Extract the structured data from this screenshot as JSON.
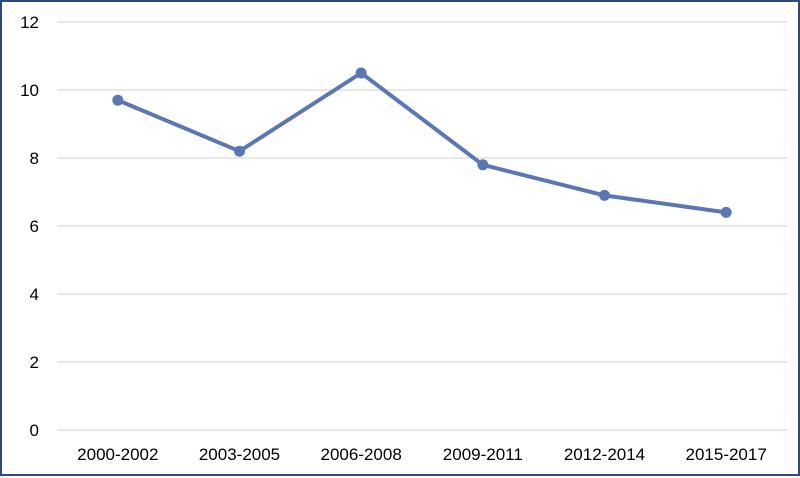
{
  "chart_data": {
    "type": "line",
    "categories": [
      "2000-2002",
      "2003-2005",
      "2006-2008",
      "2009-2011",
      "2012-2014",
      "2015-2017"
    ],
    "series": [
      {
        "values": [
          9.7,
          8.2,
          10.5,
          7.8,
          6.9,
          6.4
        ],
        "color": "#5b77b3",
        "marker": "circle"
      }
    ],
    "yticks": [
      0,
      2,
      4,
      6,
      8,
      10,
      12
    ],
    "ylim": [
      0,
      12
    ],
    "grid": true,
    "legend": "none",
    "gridline_color": "#d9d9d9",
    "border_color": "#2f4a7a"
  }
}
